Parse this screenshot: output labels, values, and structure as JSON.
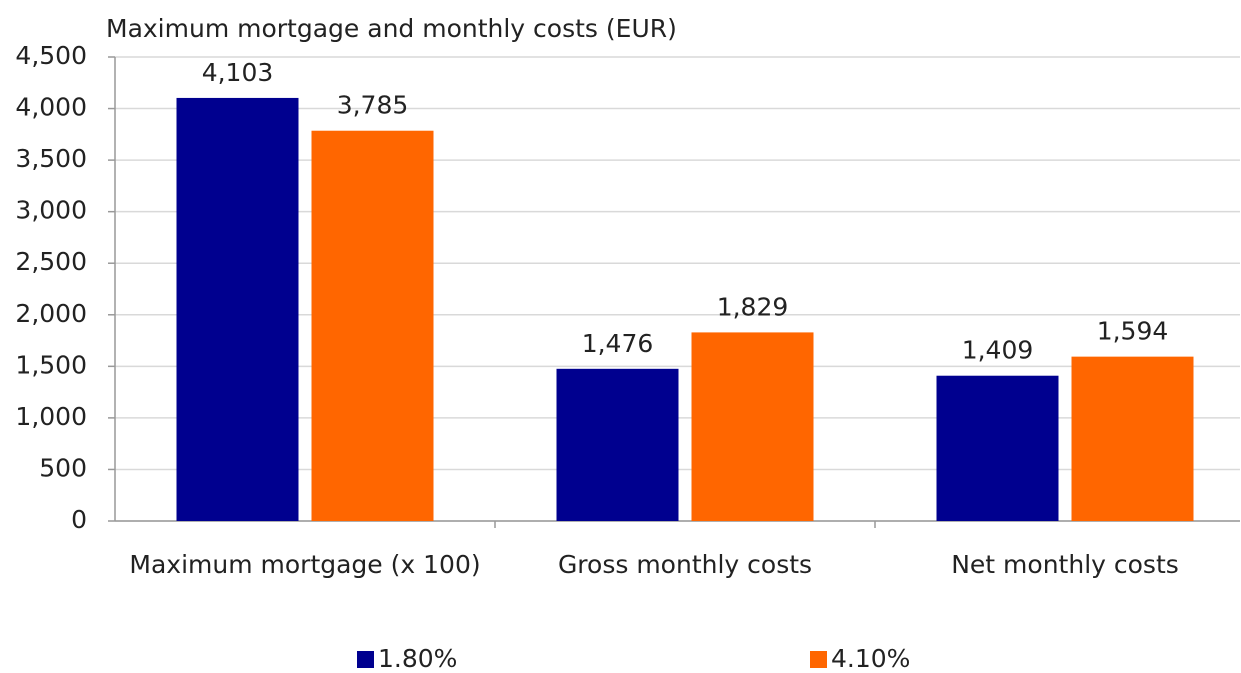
{
  "chart_data": {
    "type": "bar",
    "title": "Maximum mortgage and monthly costs (EUR)",
    "categories": [
      "Maximum mortgage (x 100)",
      "Gross monthly costs",
      "Net monthly costs"
    ],
    "series": [
      {
        "name": "1.80%",
        "color": "#00008f",
        "values": [
          4103,
          1476,
          1409
        ],
        "value_labels": [
          "4,103",
          "1,476",
          "1,409"
        ]
      },
      {
        "name": "4.10%",
        "color": "#ff6600",
        "values": [
          3785,
          1829,
          1594
        ],
        "value_labels": [
          "3,785",
          "1,829",
          "1,594"
        ]
      }
    ],
    "ylim": [
      0,
      4500
    ],
    "yticks": [
      0,
      500,
      {
        "value": 1000,
        "label": "1,000"
      },
      {
        "value": 1500,
        "label": "1,500"
      },
      {
        "value": 2000,
        "label": "2,000"
      },
      {
        "value": 2500,
        "label": "2,500"
      },
      {
        "value": 3000,
        "label": "3,000"
      },
      {
        "value": 3500,
        "label": "3,500"
      },
      {
        "value": 4000,
        "label": "4,000"
      },
      {
        "value": 4500,
        "label": "4,500"
      }
    ],
    "grid": true,
    "legend": "bottom"
  }
}
